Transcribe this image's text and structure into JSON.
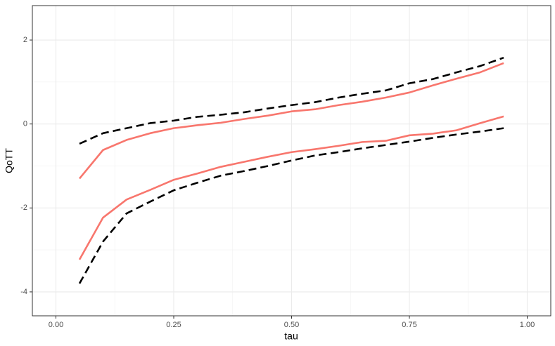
{
  "chart_data": {
    "type": "line",
    "x_label": "tau",
    "y_label": "QoTT",
    "x": [
      0.05,
      0.1,
      0.15,
      0.2,
      0.25,
      0.3,
      0.35,
      0.4,
      0.45,
      0.5,
      0.55,
      0.6,
      0.65,
      0.7,
      0.75,
      0.8,
      0.85,
      0.9,
      0.95
    ],
    "series": [
      {
        "color": "#f8766d",
        "dash": "solid",
        "values": [
          -1.3,
          -0.62,
          -0.38,
          -0.22,
          -0.1,
          -0.03,
          0.03,
          0.12,
          0.2,
          0.3,
          0.35,
          0.45,
          0.53,
          0.63,
          0.75,
          0.92,
          1.08,
          1.23,
          1.45
        ]
      },
      {
        "color": "#000000",
        "dash": "dashed",
        "values": [
          -0.47,
          -0.22,
          -0.1,
          0.02,
          0.08,
          0.17,
          0.22,
          0.28,
          0.37,
          0.45,
          0.52,
          0.63,
          0.72,
          0.8,
          0.97,
          1.07,
          1.23,
          1.38,
          1.58
        ]
      },
      {
        "color": "#f8766d",
        "dash": "solid",
        "values": [
          -3.23,
          -2.23,
          -1.8,
          -1.57,
          -1.33,
          -1.18,
          -1.02,
          -0.9,
          -0.78,
          -0.67,
          -0.6,
          -0.52,
          -0.43,
          -0.4,
          -0.27,
          -0.23,
          -0.15,
          0.02,
          0.18
        ]
      },
      {
        "color": "#000000",
        "dash": "dashed",
        "values": [
          -3.8,
          -2.8,
          -2.13,
          -1.85,
          -1.58,
          -1.4,
          -1.23,
          -1.12,
          -1.0,
          -0.87,
          -0.75,
          -0.67,
          -0.58,
          -0.5,
          -0.42,
          -0.33,
          -0.25,
          -0.18,
          -0.1
        ]
      }
    ],
    "xlim": [
      -0.05,
      1.05
    ],
    "ylim": [
      -4.57,
      2.82
    ],
    "xticks": [
      {
        "value": 0,
        "label": "0.00"
      },
      {
        "value": 0.25,
        "label": "0.25"
      },
      {
        "value": 0.5,
        "label": "0.50"
      },
      {
        "value": 0.75,
        "label": "0.75"
      },
      {
        "value": 1,
        "label": "1.00"
      }
    ],
    "yticks": [
      -4,
      -2,
      0,
      2
    ],
    "grid": true
  }
}
